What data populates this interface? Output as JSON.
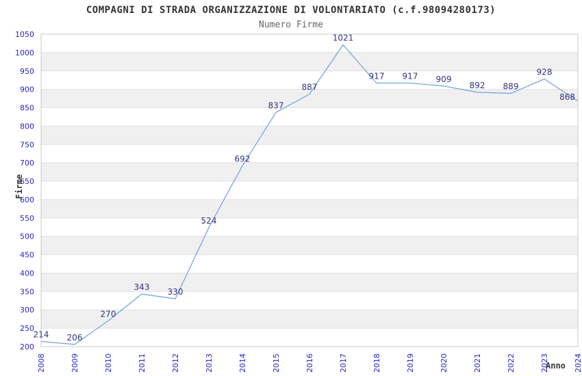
{
  "chart_data": {
    "type": "line",
    "title": "COMPAGNI DI STRADA ORGANIZZAZIONE DI VOLONTARIATO (c.f.98094280173)",
    "subtitle": "Numero Firme",
    "xlabel": "Anno",
    "ylabel": "Firme",
    "x": [
      2008,
      2009,
      2010,
      2011,
      2012,
      2013,
      2014,
      2015,
      2016,
      2017,
      2018,
      2019,
      2020,
      2021,
      2022,
      2023,
      2024
    ],
    "values": [
      214,
      206,
      270,
      343,
      330,
      524,
      692,
      837,
      887,
      1021,
      917,
      917,
      909,
      892,
      889,
      928,
      868
    ],
    "ylim": [
      200,
      1050
    ],
    "ytick_step": 50,
    "grid": true,
    "legend_position": "none",
    "markers": false,
    "data_labels_shown": true,
    "colors": {
      "line": "#74a7e3",
      "data_label": "#333380",
      "tick_label": "#2424cc",
      "band": "#f0f0f0",
      "band_alt": "#ffffff",
      "gridline": "#e0e0e0",
      "border": "#c9c9c9",
      "title": "#333333",
      "subtitle": "#666666",
      "axis_title": "#333333",
      "background": "#ffffff"
    }
  }
}
